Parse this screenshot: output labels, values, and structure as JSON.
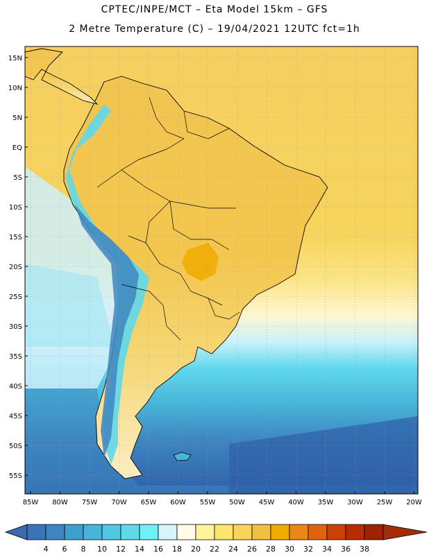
{
  "title_line1": "CPTEC/INPE/MCT –  Eta Model 15km – GFS",
  "title_line2": "2 Metre Temperature (C) – 19/04/2021 12UTC fct=1h",
  "lat_labels": [
    "15N",
    "10N",
    "5N",
    "EQ",
    "5S",
    "10S",
    "15S",
    "20S",
    "25S",
    "30S",
    "35S",
    "40S",
    "45S",
    "50S",
    "55S"
  ],
  "lon_labels": [
    "85W",
    "80W",
    "75W",
    "70W",
    "65W",
    "60W",
    "55W",
    "50W",
    "45W",
    "40W",
    "35W",
    "30W",
    "25W",
    "20W"
  ],
  "colorbar": {
    "labels": [
      "4",
      "6",
      "8",
      "10",
      "12",
      "14",
      "16",
      "18",
      "20",
      "22",
      "24",
      "26",
      "28",
      "30",
      "32",
      "34",
      "36",
      "38"
    ],
    "colors": [
      "#3b73b8",
      "#3e86c1",
      "#3e9fcc",
      "#47b5d9",
      "#52c7e2",
      "#5fdaea",
      "#6ff0f5",
      "#d4f6fb",
      "#fffbe6",
      "#fff29c",
      "#fde46c",
      "#f8d55a",
      "#f0c040",
      "#f0aa00",
      "#ea8716",
      "#e06410",
      "#cc3f06",
      "#b82c04",
      "#9c2404"
    ],
    "arrow_left_color": "#3b6ab0",
    "arrow_right_color": "#a02c08"
  }
}
